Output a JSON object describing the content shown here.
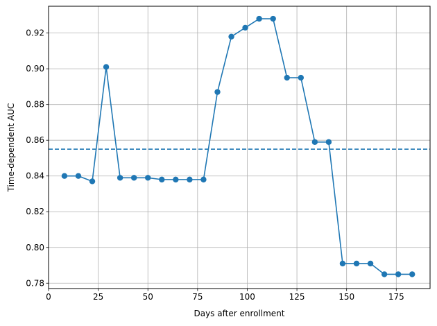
{
  "chart_data": {
    "type": "line",
    "title": "",
    "xlabel": "Days after enrollment",
    "ylabel": "Time-dependent AUC",
    "xlim": [
      0,
      192
    ],
    "ylim": [
      0.777,
      0.935
    ],
    "xticks": [
      0,
      25,
      50,
      75,
      100,
      125,
      150,
      175
    ],
    "yticks": [
      0.78,
      0.8,
      0.82,
      0.84,
      0.86,
      0.88,
      0.9,
      0.92
    ],
    "ytick_labels": [
      "0.78",
      "0.80",
      "0.82",
      "0.84",
      "0.86",
      "0.88",
      "0.90",
      "0.92"
    ],
    "grid": true,
    "series": [
      {
        "color": "#1f77b4",
        "marker": "circle",
        "x": [
          8,
          15,
          22,
          29,
          36,
          43,
          50,
          57,
          64,
          71,
          78,
          85,
          92,
          99,
          106,
          113,
          120,
          127,
          134,
          141,
          148,
          155,
          162,
          169,
          176,
          183
        ],
        "y": [
          0.84,
          0.84,
          0.837,
          0.901,
          0.839,
          0.839,
          0.839,
          0.838,
          0.838,
          0.838,
          0.838,
          0.887,
          0.918,
          0.923,
          0.928,
          0.928,
          0.895,
          0.895,
          0.859,
          0.859,
          0.791,
          0.791,
          0.791,
          0.785,
          0.785,
          0.785
        ]
      }
    ],
    "reference_line": {
      "orientation": "horizontal",
      "y": 0.855,
      "style": "dashed",
      "color": "#1f77b4"
    }
  }
}
